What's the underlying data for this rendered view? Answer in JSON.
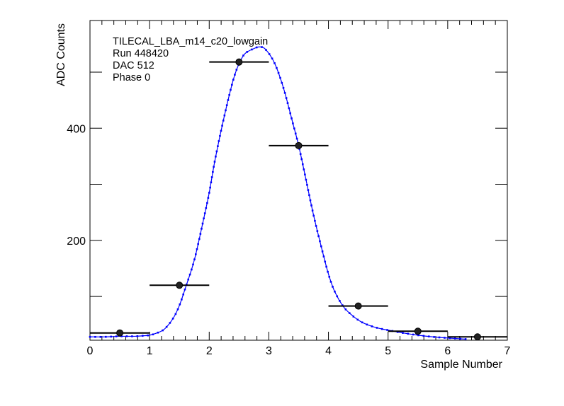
{
  "chart_data": {
    "type": "scatter",
    "title": "",
    "xlabel": "Sample Number",
    "ylabel": "ADC Counts",
    "xlim": [
      0,
      7
    ],
    "ylim": [
      22,
      592
    ],
    "grid": false,
    "x_major_ticks": [
      0,
      1,
      2,
      3,
      4,
      5,
      6,
      7
    ],
    "x_tick_labels": [
      "0",
      "1",
      "2",
      "3",
      "4",
      "5",
      "6",
      "7"
    ],
    "y_major_ticks": [
      100,
      200,
      300,
      400,
      500
    ],
    "y_tick_labels": [
      "200",
      "400"
    ],
    "y_labeled_ticks": [
      200,
      400
    ],
    "annotations": [
      "TILECAL_LBA_m14_c20_lowgain",
      "Run 448420",
      "DAC 512",
      "Phase 0"
    ],
    "series": [
      {
        "kind": "points_with_x_errors",
        "color": "#000000",
        "points": [
          {
            "x": 0.5,
            "y": 35,
            "xerr": 0.5
          },
          {
            "x": 1.5,
            "y": 120,
            "xerr": 0.5
          },
          {
            "x": 2.5,
            "y": 518,
            "xerr": 0.5
          },
          {
            "x": 3.5,
            "y": 369,
            "xerr": 0.5
          },
          {
            "x": 4.5,
            "y": 83,
            "xerr": 0.5
          },
          {
            "x": 5.5,
            "y": 38,
            "xerr": 0.5
          },
          {
            "x": 6.5,
            "y": 28,
            "xerr": 0.5
          }
        ]
      },
      {
        "kind": "fit_curve",
        "color": "#0000ff",
        "x": [
          0,
          0.25,
          0.5,
          0.75,
          0.9,
          1.0,
          1.1,
          1.25,
          1.4,
          1.5,
          1.6,
          1.75,
          1.9,
          2.0,
          2.1,
          2.25,
          2.4,
          2.5,
          2.6,
          2.75,
          2.85,
          2.95,
          3.1,
          3.25,
          3.4,
          3.5,
          3.6,
          3.75,
          3.9,
          4.0,
          4.1,
          4.25,
          4.4,
          4.5,
          4.6,
          4.75,
          4.9,
          5.0,
          5.25,
          5.5,
          5.75,
          6.0,
          6.3
        ],
        "y": [
          28,
          28,
          29,
          29,
          30,
          31,
          34,
          42,
          62,
          84,
          115,
          165,
          235,
          285,
          345,
          420,
          485,
          515,
          533,
          542,
          545,
          540,
          515,
          470,
          410,
          369,
          320,
          245,
          180,
          140,
          110,
          82,
          66,
          58,
          52,
          46,
          42,
          40,
          35,
          31,
          28,
          26,
          24
        ]
      }
    ]
  }
}
